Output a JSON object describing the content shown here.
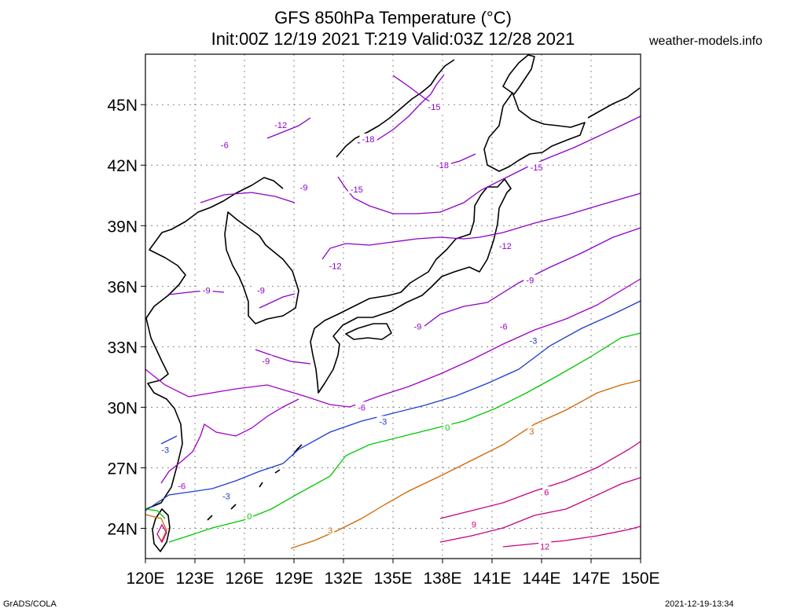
{
  "title_line1": "GFS 850hPa Temperature (°C)",
  "title_line2": "Init:00Z 12/19 2021 T:219 Valid:03Z 12/28 2021",
  "source": "weather-models.info",
  "footer_left": "GrADS/COLA",
  "footer_right": "2021-12-19-13:34",
  "map": {
    "lon_range": [
      120,
      150
    ],
    "lat_range": [
      22.5,
      47.5
    ],
    "lon_ticks": [
      "120E",
      "123E",
      "126E",
      "129E",
      "132E",
      "135E",
      "138E",
      "141E",
      "144E",
      "147E",
      "150E"
    ],
    "lat_ticks": [
      "24N",
      "27N",
      "30N",
      "33N",
      "36N",
      "39N",
      "42N",
      "45N"
    ],
    "grid": true,
    "contour_colors": {
      "-18": "#8c00c8",
      "-15": "#8c00c8",
      "-12": "#8c00c8",
      "-9": "#8c00c8",
      "-6": "#a000c8",
      "-3": "#1e3cd2",
      "0": "#00c800",
      "3": "#d26400",
      "6": "#c8007d",
      "9": "#c8007d",
      "12": "#c8007d"
    },
    "contour_labels": [
      {
        "text": "-18",
        "lon": 133.5,
        "lat": 43.3
      },
      {
        "text": "-18",
        "lon": 138.0,
        "lat": 42.0
      },
      {
        "text": "-15",
        "lon": 137.5,
        "lat": 44.9
      },
      {
        "text": "-15",
        "lon": 132.8,
        "lat": 40.8
      },
      {
        "text": "-15",
        "lon": 143.7,
        "lat": 41.9
      },
      {
        "text": "-12",
        "lon": 128.2,
        "lat": 44.0
      },
      {
        "text": "-12",
        "lon": 131.5,
        "lat": 37.0
      },
      {
        "text": "-12",
        "lon": 141.8,
        "lat": 38.0
      },
      {
        "text": "-9",
        "lon": 129.6,
        "lat": 40.9
      },
      {
        "text": "-9",
        "lon": 143.3,
        "lat": 36.3
      },
      {
        "text": "-9",
        "lon": 127.0,
        "lat": 35.8
      },
      {
        "text": "-9",
        "lon": 136.5,
        "lat": 34.0
      },
      {
        "text": "-9",
        "lon": 127.3,
        "lat": 32.3
      },
      {
        "text": "-9",
        "lon": 123.7,
        "lat": 35.8
      },
      {
        "text": "-6",
        "lon": 124.8,
        "lat": 43.0
      },
      {
        "text": "-6",
        "lon": 141.7,
        "lat": 34.0
      },
      {
        "text": "-6",
        "lon": 133.1,
        "lat": 30.0
      },
      {
        "text": "-6",
        "lon": 122.2,
        "lat": 26.1
      },
      {
        "text": "-3",
        "lon": 143.5,
        "lat": 33.3
      },
      {
        "text": "-3",
        "lon": 134.4,
        "lat": 29.3
      },
      {
        "text": "-3",
        "lon": 124.9,
        "lat": 25.6
      },
      {
        "text": "-3",
        "lon": 121.2,
        "lat": 27.9
      },
      {
        "text": "0",
        "lon": 138.3,
        "lat": 29.0
      },
      {
        "text": "0",
        "lon": 126.3,
        "lat": 24.6
      },
      {
        "text": "3",
        "lon": 143.4,
        "lat": 28.8
      },
      {
        "text": "3",
        "lon": 131.2,
        "lat": 23.9
      },
      {
        "text": "6",
        "lon": 144.3,
        "lat": 25.8
      },
      {
        "text": "9",
        "lon": 139.9,
        "lat": 24.2
      },
      {
        "text": "12",
        "lon": 144.2,
        "lat": 23.1
      }
    ]
  }
}
